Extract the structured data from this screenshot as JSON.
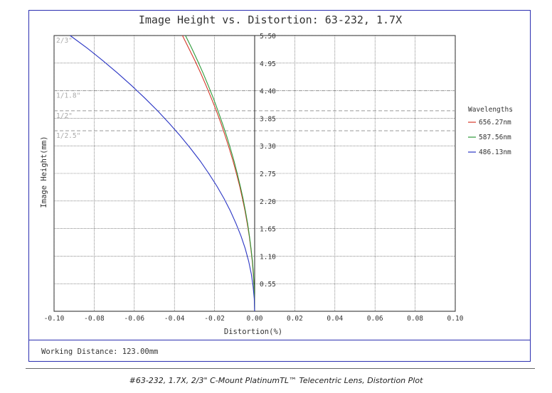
{
  "footer": {
    "working_distance": "Working Distance: 123.00mm"
  },
  "caption": "#63-232, 1.7X, 2/3\" C-Mount PlatinumTL™ Telecentric Lens, Distortion Plot",
  "chart_data": {
    "type": "line",
    "title": "Image Height vs. Distortion: 63-232, 1.7X",
    "xlabel": "Distortion(%)",
    "ylabel": "Image Height(mm)",
    "xlim": [
      -0.1,
      0.1
    ],
    "ylim": [
      0,
      5.5
    ],
    "x_ticks": [
      "-0.10",
      "-0.08",
      "-0.06",
      "-0.04",
      "-0.02",
      "0.00",
      "0.02",
      "0.04",
      "0.06",
      "0.08",
      "0.10"
    ],
    "y_ticks": [
      "0.55",
      "1.10",
      "1.65",
      "2.20",
      "2.75",
      "3.30",
      "3.85",
      "4.40",
      "4.95",
      "5.50"
    ],
    "grid": true,
    "legend": {
      "title": "Wavelengths",
      "position": "right"
    },
    "sensor_lines": [
      {
        "label": "2/3\"",
        "y": 5.5
      },
      {
        "label": "1/1.8\"",
        "y": 4.4
      },
      {
        "label": "1/2\"",
        "y": 4.0
      },
      {
        "label": "1/2.5\"",
        "y": 3.6
      }
    ],
    "series": [
      {
        "name": "656.27nm",
        "color": "#d43a2a",
        "x": [
          0,
          -0.0001,
          -0.0003,
          -0.0007,
          -0.0012,
          -0.0019,
          -0.0027,
          -0.0037,
          -0.0048,
          -0.0061,
          -0.0075,
          -0.0091,
          -0.0108,
          -0.0127,
          -0.0147,
          -0.0168,
          -0.0191,
          -0.0216,
          -0.0242,
          -0.0269,
          -0.0298,
          -0.0329,
          -0.036
        ],
        "y": [
          0,
          0.25,
          0.5,
          0.75,
          1.0,
          1.25,
          1.5,
          1.75,
          2.0,
          2.25,
          2.5,
          2.75,
          3.0,
          3.25,
          3.5,
          3.75,
          4.0,
          4.25,
          4.5,
          4.75,
          5.0,
          5.25,
          5.5
        ]
      },
      {
        "name": "587.56nm",
        "color": "#2e9a3a",
        "x": [
          0,
          -0.0001,
          -0.0003,
          -0.0006,
          -0.0011,
          -0.0018,
          -0.0026,
          -0.0035,
          -0.0046,
          -0.0058,
          -0.0072,
          -0.0087,
          -0.0103,
          -0.0121,
          -0.014,
          -0.0161,
          -0.0183,
          -0.0206,
          -0.0231,
          -0.0257,
          -0.0285,
          -0.0314,
          -0.0345
        ],
        "y": [
          0,
          0.25,
          0.5,
          0.75,
          1.0,
          1.25,
          1.5,
          1.75,
          2.0,
          2.25,
          2.5,
          2.75,
          3.0,
          3.25,
          3.5,
          3.75,
          4.0,
          4.25,
          4.5,
          4.75,
          5.0,
          5.25,
          5.5
        ]
      },
      {
        "name": "486.13nm",
        "color": "#2a35c4",
        "x": [
          0,
          -0.0002,
          -0.0008,
          -0.0017,
          -0.003,
          -0.0047,
          -0.0068,
          -0.0093,
          -0.0121,
          -0.0153,
          -0.0189,
          -0.0229,
          -0.0272,
          -0.032,
          -0.0371,
          -0.0426,
          -0.0484,
          -0.0547,
          -0.0613,
          -0.0683,
          -0.0757,
          -0.0835,
          -0.092
        ],
        "y": [
          0,
          0.25,
          0.5,
          0.75,
          1.0,
          1.25,
          1.5,
          1.75,
          2.0,
          2.25,
          2.5,
          2.75,
          3.0,
          3.25,
          3.5,
          3.75,
          4.0,
          4.25,
          4.5,
          4.75,
          5.0,
          5.25,
          5.5
        ]
      }
    ]
  }
}
